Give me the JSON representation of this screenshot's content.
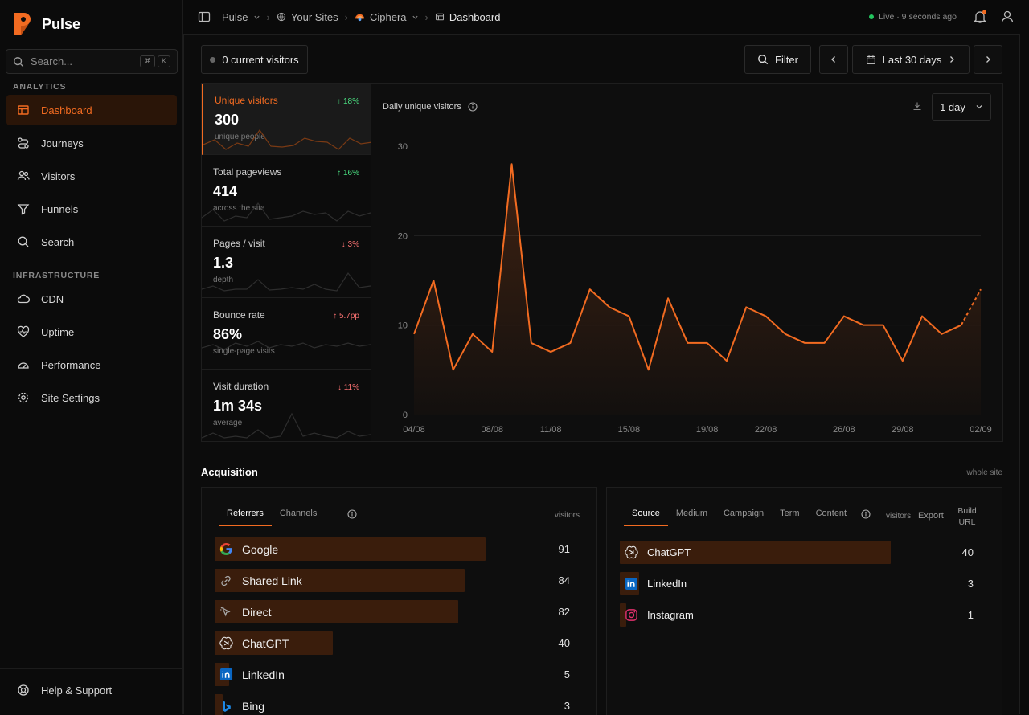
{
  "app": {
    "name": "Pulse"
  },
  "search": {
    "placeholder": "Search...",
    "kbd1": "⌘",
    "kbd2": "K"
  },
  "sidebar": {
    "analytics_label": "ANALYTICS",
    "infra_label": "INFRASTRUCTURE",
    "items": [
      {
        "label": "Dashboard",
        "icon": "dashboard-icon"
      },
      {
        "label": "Journeys",
        "icon": "route-icon"
      },
      {
        "label": "Visitors",
        "icon": "users-icon"
      },
      {
        "label": "Funnels",
        "icon": "funnel-icon"
      },
      {
        "label": "Search",
        "icon": "search-icon"
      },
      {
        "label": "CDN",
        "icon": "cloud-icon"
      },
      {
        "label": "Uptime",
        "icon": "heart-pulse-icon"
      },
      {
        "label": "Performance",
        "icon": "gauge-icon"
      },
      {
        "label": "Site Settings",
        "icon": "gear-icon"
      }
    ],
    "help": "Help & Support"
  },
  "topbar": {
    "crumbs": [
      "Pulse",
      "Your Sites",
      "Ciphera",
      "Dashboard"
    ],
    "live": "Live · 9 seconds ago"
  },
  "toolbar": {
    "current_visitors": "0 current visitors",
    "filter": "Filter",
    "range": "Last 30 days"
  },
  "metrics": [
    {
      "label": "Unique visitors",
      "value": "300",
      "sub": "unique people",
      "change": "↑ 18%",
      "dir": "up"
    },
    {
      "label": "Total pageviews",
      "value": "414",
      "sub": "across the site",
      "change": "↑ 16%",
      "dir": "up"
    },
    {
      "label": "Pages / visit",
      "value": "1.3",
      "sub": "depth",
      "change": "↓ 3%",
      "dir": "down"
    },
    {
      "label": "Bounce rate",
      "value": "86%",
      "sub": "single-page visits",
      "change": "↑ 5.7pp",
      "dir": "down"
    },
    {
      "label": "Visit duration",
      "value": "1m 34s",
      "sub": "average",
      "change": "↓ 11%",
      "dir": "down"
    }
  ],
  "chart": {
    "title": "Daily unique visitors",
    "granularity": "1 day"
  },
  "chart_data": {
    "type": "area",
    "title": "Daily unique visitors",
    "x": [
      "04/08",
      "05/08",
      "06/08",
      "07/08",
      "08/08",
      "09/08",
      "10/08",
      "11/08",
      "12/08",
      "13/08",
      "14/08",
      "15/08",
      "16/08",
      "17/08",
      "18/08",
      "19/08",
      "20/08",
      "21/08",
      "22/08",
      "23/08",
      "24/08",
      "25/08",
      "26/08",
      "27/08",
      "28/08",
      "29/08",
      "30/08",
      "31/08",
      "01/09",
      "02/09"
    ],
    "x_ticks": [
      "04/08",
      "08/08",
      "11/08",
      "15/08",
      "19/08",
      "22/08",
      "26/08",
      "29/08",
      "02/09"
    ],
    "series": [
      {
        "values": [
          9,
          15,
          5,
          9,
          7,
          28,
          8,
          7,
          8,
          14,
          12,
          11,
          5,
          13,
          8,
          8,
          6,
          12,
          11,
          9,
          8,
          8,
          11,
          10,
          10,
          6,
          11,
          9,
          10,
          14
        ]
      }
    ],
    "ylim": [
      0,
      30
    ],
    "y_ticks": [
      0,
      10,
      20,
      30
    ],
    "grid": true,
    "color": "#f26b21"
  },
  "acquisition": {
    "title": "Acquisition",
    "note": "whole site",
    "left": {
      "tabs": [
        "Referrers",
        "Channels"
      ],
      "col": "visitors",
      "rows": [
        {
          "name": "Google",
          "value": "91",
          "icon": "google-icon"
        },
        {
          "name": "Shared Link",
          "value": "84",
          "icon": "link-icon"
        },
        {
          "name": "Direct",
          "value": "82",
          "icon": "cursor-icon"
        },
        {
          "name": "ChatGPT",
          "value": "40",
          "icon": "openai-icon"
        },
        {
          "name": "LinkedIn",
          "value": "5",
          "icon": "linkedin-icon"
        },
        {
          "name": "Bing",
          "value": "3",
          "icon": "bing-icon"
        }
      ]
    },
    "right": {
      "tabs": [
        "Source",
        "Medium",
        "Campaign",
        "Term",
        "Content"
      ],
      "col": "visitors",
      "export": "Export",
      "build": "Build URL",
      "rows": [
        {
          "name": "ChatGPT",
          "value": "40",
          "icon": "openai-icon"
        },
        {
          "name": "LinkedIn",
          "value": "3",
          "icon": "linkedin-icon"
        },
        {
          "name": "Instagram",
          "value": "1",
          "icon": "instagram-icon"
        }
      ]
    }
  }
}
